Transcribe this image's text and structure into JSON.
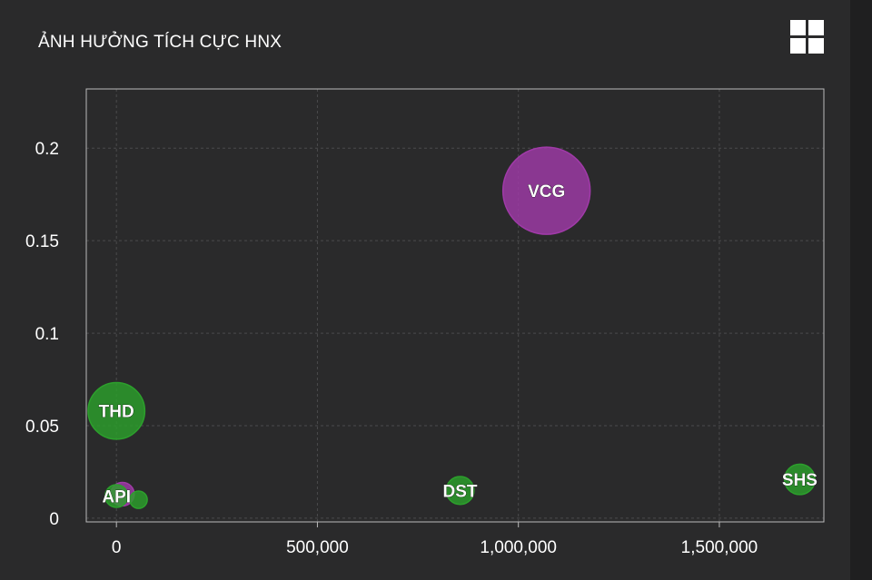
{
  "header": {
    "title": "ẢNH HƯỞNG TÍCH CỰC HNX"
  },
  "toolbar": {
    "menu_icon": "grid-menu-icon"
  },
  "colors": {
    "background": "#2a2a2b",
    "positive": "#2ca02c",
    "highlight": "#a03aa8",
    "grid": "#4a4a4c",
    "frame": "#bbbbbb"
  },
  "chart_data": {
    "type": "scatter",
    "title": "ẢNH HƯỞNG TÍCH CỰC HNX",
    "xlabel": "",
    "ylabel": "",
    "xlim": [
      -75000,
      1760000
    ],
    "ylim": [
      -0.002,
      0.232
    ],
    "x_ticks": [
      0,
      500000,
      1000000,
      1500000
    ],
    "x_tick_labels": [
      "0",
      "500,000",
      "1,000,000",
      "1,500,000"
    ],
    "y_ticks": [
      0,
      0.05,
      0.1,
      0.15,
      0.2
    ],
    "y_tick_labels": [
      "0",
      "0.05",
      "0.1",
      "0.15",
      "0.2"
    ],
    "grid": true,
    "points": [
      {
        "label": "VCG",
        "x": 1070000,
        "y": 0.177,
        "size": 10,
        "color": "#a03aa8"
      },
      {
        "label": "THD",
        "x": 0,
        "y": 0.058,
        "size": 6.5,
        "color": "#2ca02c"
      },
      {
        "label": "SHS",
        "x": 1700000,
        "y": 0.021,
        "size": 3.5,
        "color": "#2ca02c"
      },
      {
        "label": "DST",
        "x": 855000,
        "y": 0.015,
        "size": 3.2,
        "color": "#2ca02c"
      },
      {
        "label": "",
        "x": 15000,
        "y": 0.013,
        "size": 2.7,
        "color": "#a03aa8"
      },
      {
        "label": "API",
        "x": 0,
        "y": 0.012,
        "size": 2.6,
        "color": "#2ca02c"
      },
      {
        "label": "",
        "x": 55000,
        "y": 0.01,
        "size": 2.0,
        "color": "#2ca02c"
      }
    ]
  }
}
